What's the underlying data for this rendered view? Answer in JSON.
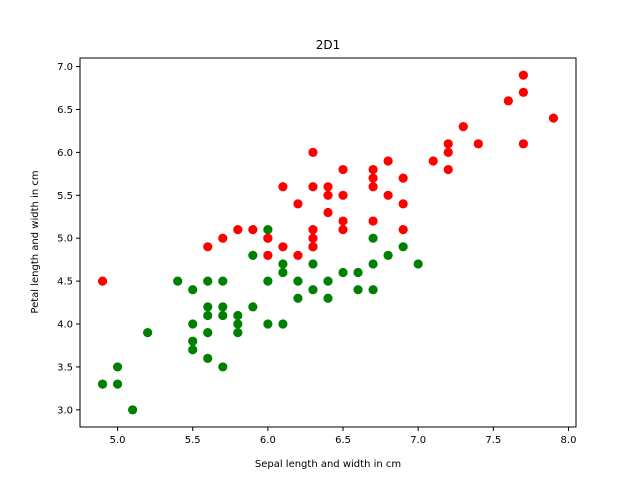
{
  "chart_data": {
    "type": "scatter",
    "title": "2D1",
    "xlabel": "Sepal length and width in cm",
    "ylabel": "Petal length and width in cm",
    "xlim": [
      4.75,
      8.05
    ],
    "ylim": [
      2.8,
      7.1
    ],
    "xticks": [
      5.0,
      5.5,
      6.0,
      6.5,
      7.0,
      7.5,
      8.0
    ],
    "yticks": [
      3.0,
      3.5,
      4.0,
      4.5,
      5.0,
      5.5,
      6.0,
      6.5,
      7.0
    ],
    "grid": false,
    "legend": "none",
    "series": [
      {
        "color": "#008000",
        "points": [
          [
            4.9,
            3.3
          ],
          [
            5.0,
            3.3
          ],
          [
            5.0,
            3.5
          ],
          [
            5.1,
            3.0
          ],
          [
            5.2,
            3.9
          ],
          [
            5.4,
            4.5
          ],
          [
            5.5,
            4.4
          ],
          [
            5.5,
            4.0
          ],
          [
            5.5,
            3.8
          ],
          [
            5.5,
            3.7
          ],
          [
            5.6,
            4.5
          ],
          [
            5.6,
            4.2
          ],
          [
            5.6,
            4.1
          ],
          [
            5.6,
            3.9
          ],
          [
            5.6,
            3.6
          ],
          [
            5.7,
            4.5
          ],
          [
            5.7,
            4.2
          ],
          [
            5.7,
            4.1
          ],
          [
            5.7,
            3.5
          ],
          [
            5.8,
            4.1
          ],
          [
            5.8,
            4.0
          ],
          [
            5.8,
            3.9
          ],
          [
            5.9,
            4.8
          ],
          [
            5.9,
            4.2
          ],
          [
            6.0,
            5.1
          ],
          [
            6.0,
            5.0
          ],
          [
            6.0,
            4.5
          ],
          [
            6.0,
            4.0
          ],
          [
            6.1,
            4.7
          ],
          [
            6.1,
            4.6
          ],
          [
            6.1,
            4.0
          ],
          [
            6.2,
            4.5
          ],
          [
            6.2,
            4.3
          ],
          [
            6.3,
            4.9
          ],
          [
            6.3,
            4.7
          ],
          [
            6.3,
            4.4
          ],
          [
            6.4,
            4.5
          ],
          [
            6.4,
            4.3
          ],
          [
            6.5,
            4.6
          ],
          [
            6.6,
            4.6
          ],
          [
            6.6,
            4.4
          ],
          [
            6.7,
            5.0
          ],
          [
            6.7,
            4.7
          ],
          [
            6.7,
            4.4
          ],
          [
            6.8,
            4.8
          ],
          [
            6.9,
            4.9
          ],
          [
            7.0,
            4.7
          ]
        ]
      },
      {
        "color": "#ff0000",
        "points": [
          [
            4.9,
            4.5
          ],
          [
            5.6,
            4.9
          ],
          [
            5.7,
            5.0
          ],
          [
            5.8,
            5.1
          ],
          [
            5.9,
            5.1
          ],
          [
            6.0,
            5.0
          ],
          [
            6.0,
            4.8
          ],
          [
            6.1,
            5.6
          ],
          [
            6.1,
            4.9
          ],
          [
            6.2,
            5.4
          ],
          [
            6.2,
            4.8
          ],
          [
            6.3,
            6.0
          ],
          [
            6.3,
            5.6
          ],
          [
            6.3,
            5.1
          ],
          [
            6.3,
            5.0
          ],
          [
            6.3,
            4.9
          ],
          [
            6.4,
            5.6
          ],
          [
            6.4,
            5.5
          ],
          [
            6.4,
            5.3
          ],
          [
            6.5,
            5.8
          ],
          [
            6.5,
            5.5
          ],
          [
            6.5,
            5.2
          ],
          [
            6.5,
            5.1
          ],
          [
            6.7,
            5.8
          ],
          [
            6.7,
            5.7
          ],
          [
            6.7,
            5.6
          ],
          [
            6.7,
            5.2
          ],
          [
            6.8,
            5.9
          ],
          [
            6.8,
            5.5
          ],
          [
            6.9,
            5.7
          ],
          [
            6.9,
            5.4
          ],
          [
            6.9,
            5.1
          ],
          [
            7.1,
            5.9
          ],
          [
            7.2,
            6.1
          ],
          [
            7.2,
            6.0
          ],
          [
            7.2,
            5.8
          ],
          [
            7.3,
            6.3
          ],
          [
            7.4,
            6.1
          ],
          [
            7.6,
            6.6
          ],
          [
            7.7,
            6.9
          ],
          [
            7.7,
            6.7
          ],
          [
            7.7,
            6.1
          ],
          [
            7.9,
            6.4
          ]
        ]
      }
    ]
  }
}
